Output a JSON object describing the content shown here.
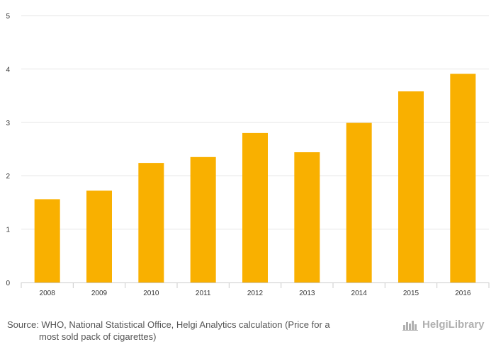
{
  "chart_data": {
    "type": "bar",
    "categories": [
      "2008",
      "2009",
      "2010",
      "2011",
      "2012",
      "2013",
      "2014",
      "2015",
      "2016"
    ],
    "values": [
      1.56,
      1.72,
      2.24,
      2.35,
      2.8,
      2.44,
      2.99,
      3.58,
      3.91
    ],
    "ylim": [
      0,
      5
    ],
    "yticks": [
      0,
      1,
      2,
      3,
      4,
      5
    ],
    "grid": true,
    "bar_color": "#f9b000"
  },
  "source": {
    "line1": "Source: WHO, National Statistical Office, Helgi Analytics calculation (Price for a",
    "line2": "most sold pack of cigarettes)"
  },
  "logo": {
    "text": "HelgiLibrary",
    "icon": "helgi-skyline-logo-icon"
  }
}
